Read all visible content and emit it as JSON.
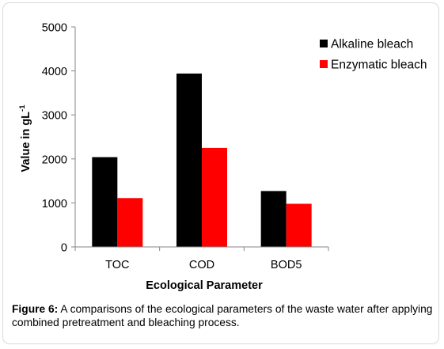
{
  "chart_data": {
    "type": "bar",
    "categories": [
      "TOC",
      "COD",
      "BOD5"
    ],
    "series": [
      {
        "name": "Alkaline bleach",
        "values": [
          2040,
          3940,
          1270
        ],
        "color": "#000000"
      },
      {
        "name": "Enzymatic bleach",
        "values": [
          1110,
          2250,
          980
        ],
        "color": "#ff0000"
      }
    ],
    "title": "",
    "xlabel": "Ecological Parameter",
    "ylabel": "Value in gL",
    "ylabel_superscript": "-1",
    "ylim": [
      0,
      5000
    ],
    "yticks": [
      0,
      1000,
      2000,
      3000,
      4000,
      5000
    ],
    "grid": false,
    "legend_position": "right"
  },
  "caption": {
    "label": "Figure 6:",
    "text": " A comparisons of the ecological parameters of the waste water after applying combined pretreatment and bleaching process."
  }
}
